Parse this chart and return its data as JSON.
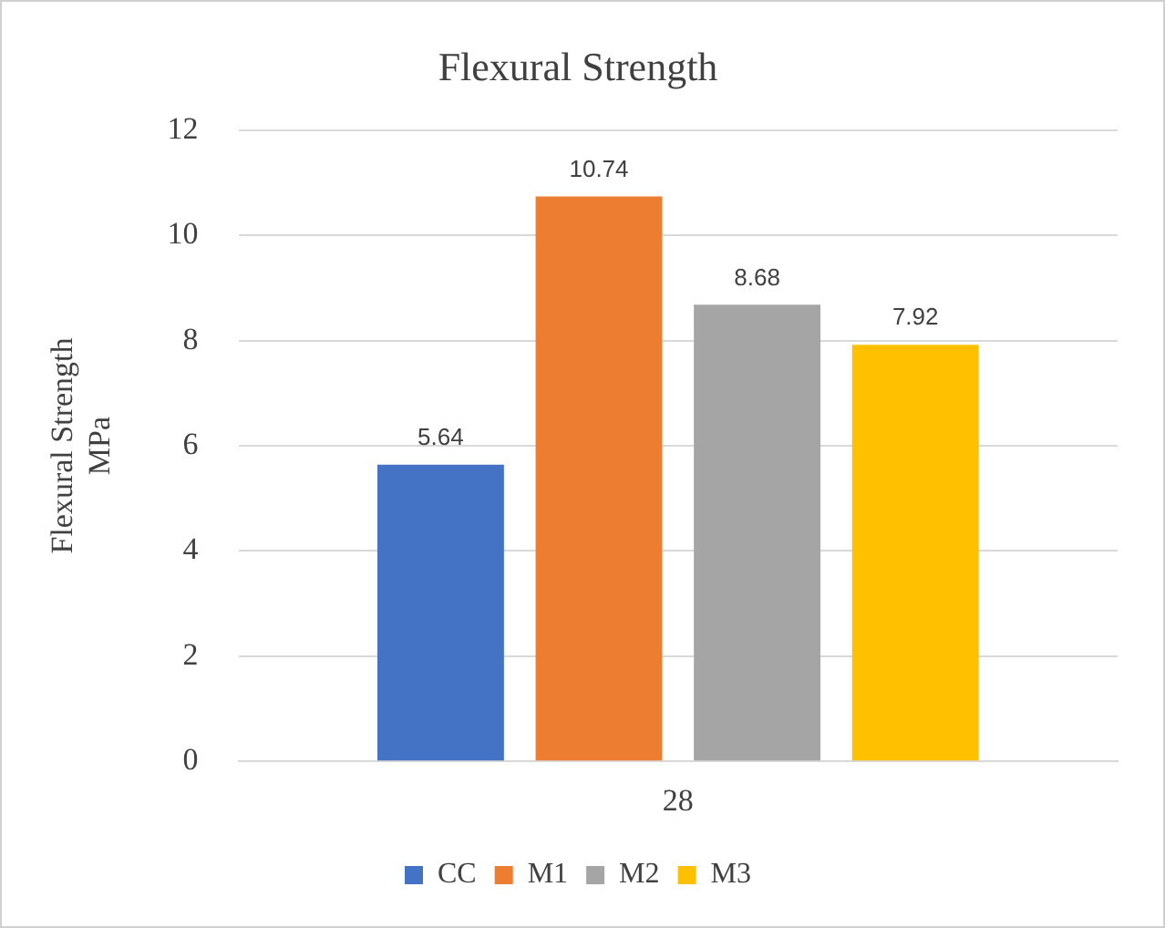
{
  "chart_data": {
    "type": "bar",
    "title": "Flexural Strength",
    "ylabel": "Flexural Strength\nMPa",
    "categories": [
      "28"
    ],
    "series": [
      {
        "name": "CC",
        "color": "#4472c4",
        "values": [
          5.64
        ]
      },
      {
        "name": "M1",
        "color": "#ed7d31",
        "values": [
          10.74
        ]
      },
      {
        "name": "M2",
        "color": "#a5a5a5",
        "values": [
          8.68
        ]
      },
      {
        "name": "M3",
        "color": "#ffc000",
        "values": [
          7.92
        ]
      }
    ],
    "ylim": [
      0,
      12
    ],
    "yticks": [
      0,
      2,
      4,
      6,
      8,
      10,
      12
    ],
    "grid": "y",
    "legend": "bottom",
    "data_labels": true
  }
}
